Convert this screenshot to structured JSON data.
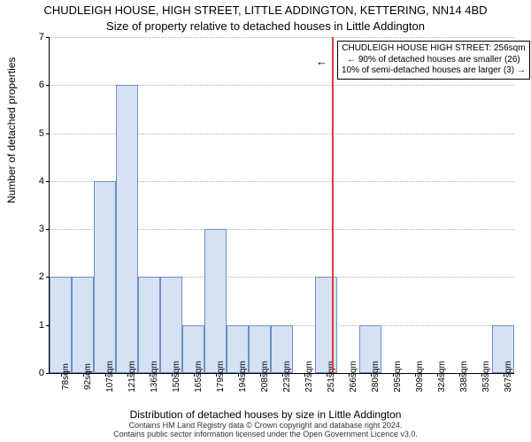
{
  "titles": {
    "main": "CHUDLEIGH HOUSE, HIGH STREET, LITTLE ADDINGTON, KETTERING, NN14 4BD",
    "sub": "Size of property relative to detached houses in Little Addington"
  },
  "axes": {
    "ylabel": "Number of detached properties",
    "xlabel": "Distribution of detached houses by size in Little Addington",
    "ylim": [
      0,
      7
    ],
    "yticks": [
      0,
      1,
      2,
      3,
      4,
      5,
      6,
      7
    ],
    "tick_fontsize": 11,
    "label_fontsize": 12
  },
  "grid": {
    "color": "#b0b0b0",
    "style": "dotted"
  },
  "bars": {
    "bin_width_sqm": 14.5,
    "x_start_sqm": 71,
    "categories": [
      "78sqm",
      "92sqm",
      "107sqm",
      "121sqm",
      "136sqm",
      "150sqm",
      "165sqm",
      "179sqm",
      "194sqm",
      "208sqm",
      "223sqm",
      "237sqm",
      "251sqm",
      "266sqm",
      "280sqm",
      "295sqm",
      "309sqm",
      "324sqm",
      "338sqm",
      "353sqm",
      "367sqm"
    ],
    "values": [
      2,
      2,
      4,
      6,
      2,
      2,
      1,
      3,
      1,
      1,
      1,
      0,
      2,
      0,
      1,
      0,
      0,
      0,
      0,
      0,
      1
    ],
    "fill_color": "#d6e2f3",
    "edge_color": "#6a8fc8"
  },
  "marker": {
    "value_sqm": 256,
    "color": "#e53935"
  },
  "info_box": {
    "line1": "CHUDLEIGH HOUSE HIGH STREET: 256sqm",
    "line2": "← 90% of detached houses are smaller (26)",
    "line3": "10% of semi-detached houses are larger (3) →",
    "border_color": "#000000",
    "bg_color": "#ffffff",
    "fontsize": 10
  },
  "footer": {
    "line1": "Contains HM Land Registry data © Crown copyright and database right 2024.",
    "line2": "Contains public sector information licensed under the Open Government Licence v3.0."
  },
  "colors": {
    "background": "#ffffff",
    "axis": "#000000",
    "text": "#000000"
  }
}
